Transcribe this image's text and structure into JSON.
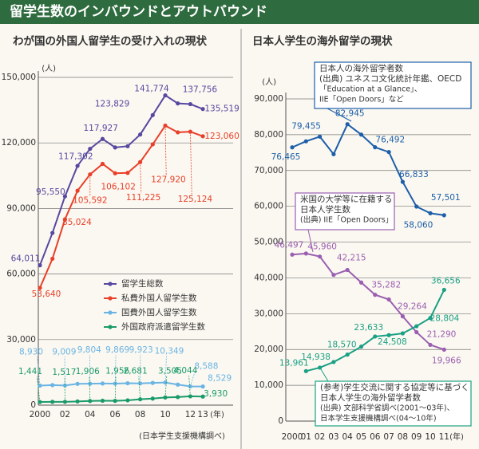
{
  "title": "留学生数のインバウンドとアウトバウンド",
  "chart_data": [
    {
      "type": "line",
      "title": "わが国の外国人留学生の受け入れの現状",
      "y_label": "(人)",
      "x_label": "(年)",
      "source": "(日本学生支援機構調べ)",
      "categories": [
        "2000",
        null,
        "02",
        null,
        "04",
        null,
        "06",
        null,
        "08",
        null,
        "10",
        null,
        "12",
        "13"
      ],
      "ylim": [
        0,
        150000
      ],
      "yticks": [
        0,
        {
          "value": 30000,
          "label": "30,000"
        },
        {
          "value": 60000,
          "label": "60,000"
        },
        {
          "value": 90000,
          "label": "90,000"
        },
        {
          "value": 120000,
          "label": "120,000"
        },
        {
          "value": 150000,
          "label": "150,000"
        }
      ],
      "grid": true,
      "series": [
        {
          "name": "留学生総数",
          "color": "#5748a0",
          "values": [
            64011,
            78812,
            95550,
            109508,
            117302,
            121812,
            117927,
            118498,
            123829,
            132720,
            141774,
            138075,
            137756,
            135519
          ],
          "value_labels": [
            "64,011",
            null,
            "95,550",
            null,
            "117,302",
            null,
            "117,927",
            null,
            "123,829",
            null,
            "141,774",
            null,
            "137,756",
            "135,519"
          ]
        },
        {
          "name": "私費外国人留学生数",
          "color": "#e8402a",
          "values": [
            53640,
            67000,
            85024,
            98135,
            105592,
            110415,
            106102,
            106297,
            111225,
            119317,
            127920,
            124844,
            125124,
            123060
          ],
          "value_labels": [
            "53,640",
            null,
            "85,024",
            null,
            "105,592",
            null,
            "106,102",
            null,
            "111,225",
            null,
            "127,920",
            null,
            "125,124",
            "123,060"
          ]
        },
        {
          "name": "国費外国人留学生数",
          "color": "#6ab4e4",
          "values": [
            8930,
            9173,
            9009,
            9746,
            9804,
            9891,
            9869,
            10020,
            9923,
            10168,
            10349,
            9396,
            8588,
            8529
          ],
          "value_labels": [
            "8,930",
            null,
            "9,009",
            null,
            "9,804",
            null,
            "9,869",
            null,
            "9,923",
            null,
            "10,349",
            null,
            "8,588",
            "8,529"
          ]
        },
        {
          "name": "外国政府派遣留学生数",
          "color": "#1a9a6a",
          "values": [
            1441,
            1500,
            1517,
            1700,
            1906,
            2000,
            1956,
            2200,
            2681,
            3000,
            3505,
            3700,
            4044,
            3930
          ],
          "value_labels": [
            "1,441",
            null,
            "1,517",
            null,
            "1,906",
            null,
            "1,956",
            null,
            "2,681",
            null,
            "3,505",
            null,
            "4,044",
            "3,930"
          ]
        }
      ]
    },
    {
      "type": "line",
      "title": "日本人学生の海外留学の現状",
      "y_label": "(人)",
      "x_label": "(年)",
      "categories": [
        "2000",
        "01",
        "02",
        "03",
        "04",
        "05",
        "06",
        "07",
        "08",
        "09",
        "10",
        "11"
      ],
      "ylim": [
        0,
        90000
      ],
      "yticks": [
        0,
        {
          "value": 10000,
          "label": "10,000"
        },
        {
          "value": 20000,
          "label": "20,000"
        },
        {
          "value": 30000,
          "label": "30,000"
        },
        {
          "value": 40000,
          "label": "40,000"
        },
        {
          "value": 50000,
          "label": "50,000"
        },
        {
          "value": 60000,
          "label": "60,000"
        },
        {
          "value": 70000,
          "label": "70,000"
        },
        {
          "value": 80000,
          "label": "80,000"
        },
        {
          "value": 90000,
          "label": "90,000"
        }
      ],
      "grid": true,
      "series": [
        {
          "color": "#1d5fa8",
          "values": [
            76465,
            78151,
            79455,
            74551,
            82945,
            80023,
            76492,
            75156,
            66833,
            59923,
            58060,
            57501
          ],
          "value_labels": [
            "76,465",
            null,
            "79,455",
            null,
            "82,945",
            null,
            "76,492",
            null,
            "66,833",
            null,
            "58,060",
            "57,501"
          ]
        },
        {
          "color": "#9a5fb0",
          "values": [
            46497,
            46810,
            45960,
            40835,
            42215,
            38712,
            35282,
            33974,
            29264,
            24842,
            21290,
            19966
          ],
          "value_labels": [
            "46,497",
            null,
            "45,960",
            null,
            "42,215",
            null,
            "35,282",
            null,
            "29,264",
            null,
            "21,290",
            "19,966"
          ]
        },
        {
          "color": "#1aa084",
          "values": [
            null,
            13961,
            14938,
            16500,
            18570,
            20803,
            23633,
            24000,
            24508,
            26500,
            28804,
            36656
          ],
          "value_labels": [
            null,
            "13,961",
            "14,938",
            null,
            "18,570",
            null,
            "23,633",
            null,
            "24,508",
            null,
            "28,804",
            "36,656"
          ]
        }
      ],
      "annotations": [
        {
          "color": "#1d5fa8",
          "lines": [
            "日本人の海外留学者数",
            "(出典) ユネスコ文化統計年鑑、OECD",
            "「Education at a Glance」、",
            "IIE「Open Doors」など"
          ]
        },
        {
          "color": "#9a5fb0",
          "lines": [
            "米国の大学等に在籍する",
            "日本人学生数",
            "(出典) IIE「Open Doors」"
          ]
        },
        {
          "color": "#1aa084",
          "lines": [
            "(参考)学生交流に関する協定等に基づく",
            "日本人学生の海外留学者数",
            "(出典) 文部科学省調べ(2001～03年)、",
            "日本学生支援機構調べ(04～10年)"
          ]
        }
      ]
    }
  ]
}
